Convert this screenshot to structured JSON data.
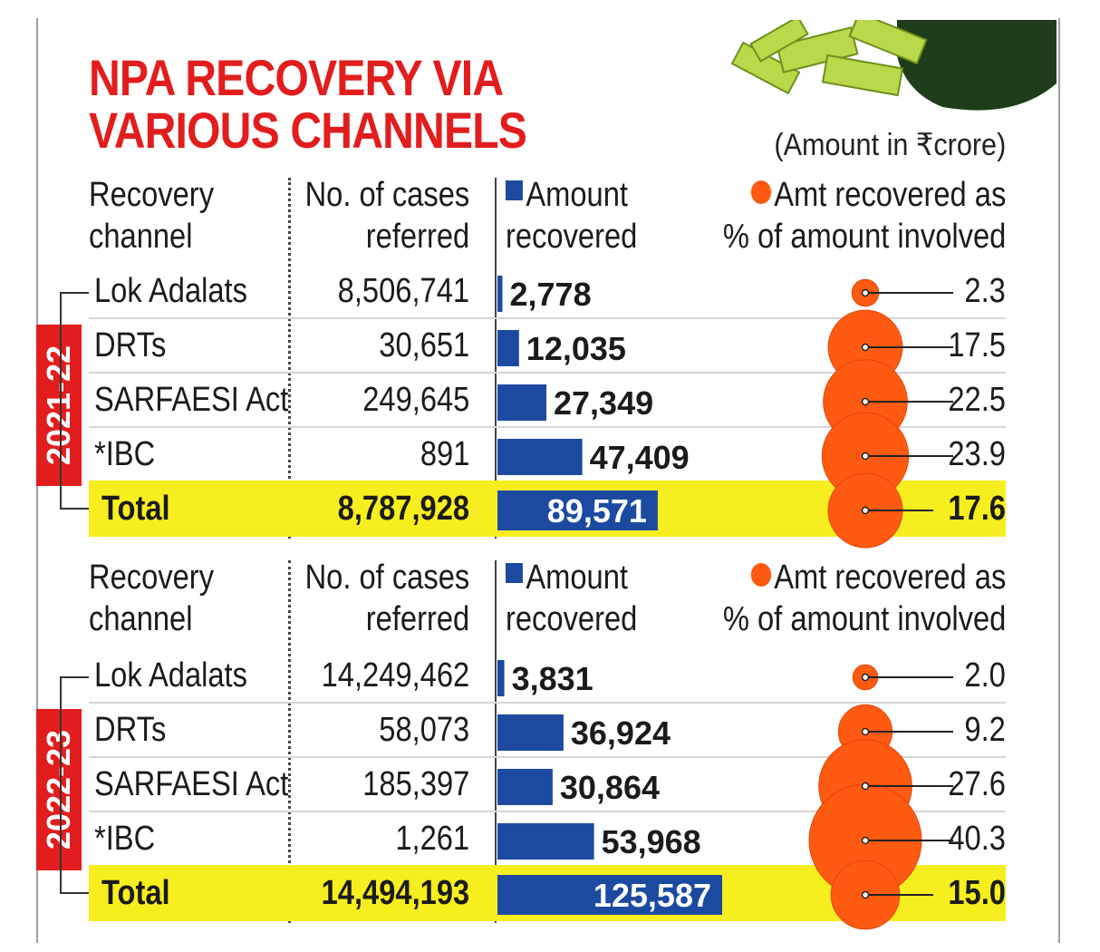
{
  "title_line1": "NPA RECOVERY VIA",
  "title_line2": "VARIOUS CHANNELS",
  "unit_note": "(Amount in ₹crore)",
  "headers": {
    "channel_l1": "Recovery",
    "channel_l2": "channel",
    "cases_l1": "No. of cases",
    "cases_l2": "referred",
    "amount_l1": "Amount",
    "amount_l2": "recovered",
    "pct_l1": "Amt recovered as",
    "pct_l2": "% of amount involved"
  },
  "colors": {
    "title": "#e21d1d",
    "bar": "#1c4aa0",
    "bubble": "#ff5a12",
    "total_band": "#f7ee1f",
    "year_box": "#e21d1d"
  },
  "chart_data": [
    {
      "type": "bar",
      "period": "2021-22",
      "categories": [
        "Lok Adalats",
        "DRTs",
        "SARFAESI Act",
        "*IBC",
        "Total"
      ],
      "cases_referred": [
        "8,506,741",
        "30,651",
        "249,645",
        "891",
        "8,787,928"
      ],
      "amount_recovered": [
        2778,
        12035,
        27349,
        47409,
        89571
      ],
      "amount_recovered_labels": [
        "2,778",
        "12,035",
        "27,349",
        "47,409",
        "89,571"
      ],
      "pct_of_amount_involved": [
        2.3,
        17.5,
        22.5,
        23.9,
        17.6
      ],
      "pct_labels": [
        "2.3",
        "17.5",
        "22.5",
        "23.9",
        "17.6"
      ]
    },
    {
      "type": "bar",
      "period": "2022-23",
      "categories": [
        "Lok Adalats",
        "DRTs",
        "SARFAESI Act",
        "*IBC",
        "Total"
      ],
      "cases_referred": [
        "14,249,462",
        "58,073",
        "185,397",
        "1,261",
        "14,494,193"
      ],
      "amount_recovered": [
        3831,
        36924,
        30864,
        53968,
        125587
      ],
      "amount_recovered_labels": [
        "3,831",
        "36,924",
        "30,864",
        "53,968",
        "125,587"
      ],
      "pct_of_amount_involved": [
        2.0,
        9.2,
        27.6,
        40.3,
        15.0
      ],
      "pct_labels": [
        "2.0",
        "9.2",
        "27.6",
        "40.3",
        "15.0"
      ]
    }
  ]
}
